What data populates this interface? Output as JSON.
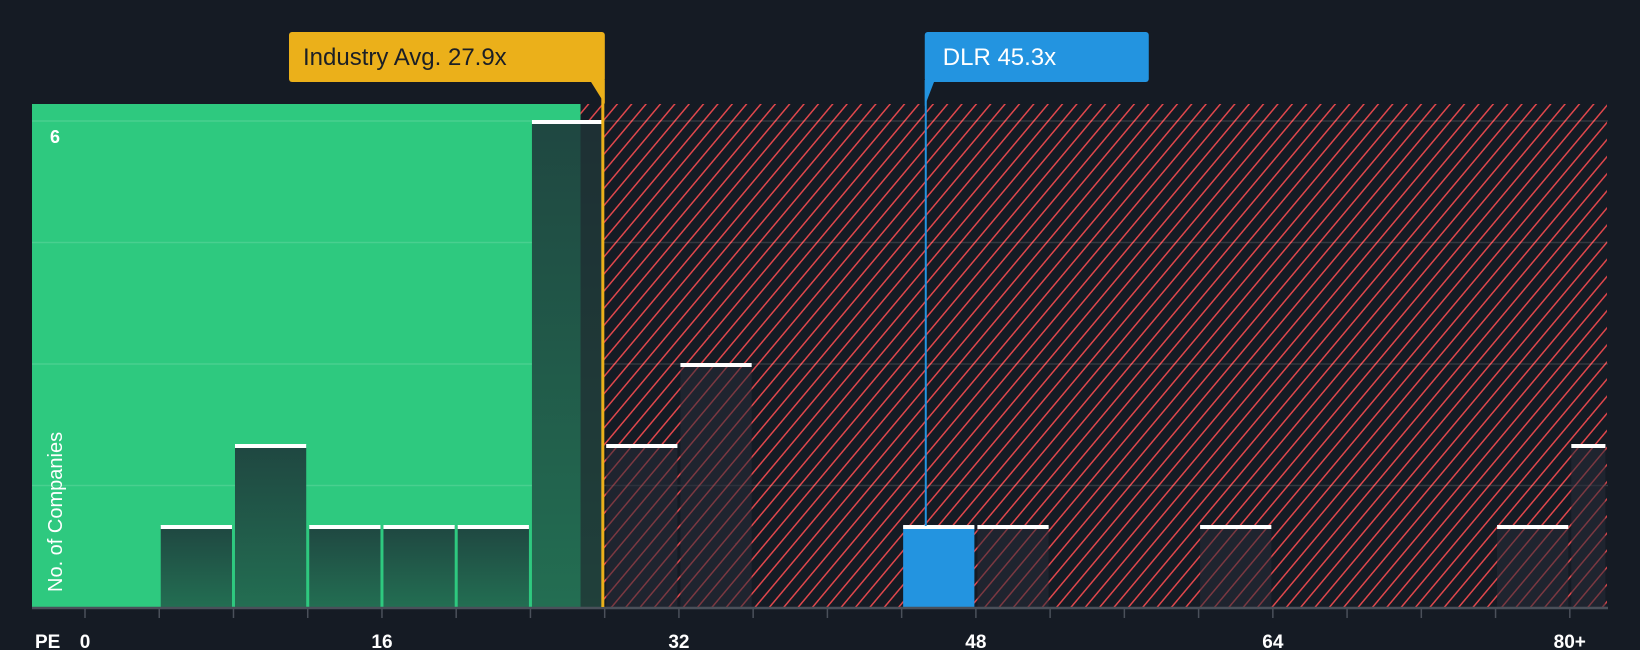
{
  "chart_data": {
    "type": "bar",
    "title": "",
    "xlabel": "PE",
    "ylabel": "No. of Companies",
    "x_unit": "PE ratio (x)",
    "bin_width": 4,
    "xlim": [
      0,
      82
    ],
    "ylim": [
      0,
      6
    ],
    "y_ticks_labeled": [
      6
    ],
    "y_gridlines": [
      1.5,
      3,
      4.5,
      6
    ],
    "x_tick_labels": [
      {
        "value": 0,
        "label": "0"
      },
      {
        "value": 16,
        "label": "16"
      },
      {
        "value": 32,
        "label": "32"
      },
      {
        "value": 48,
        "label": "48"
      },
      {
        "value": 64,
        "label": "64"
      },
      {
        "value": 80,
        "label": "80+"
      }
    ],
    "x_minor_ticks": [
      0,
      4,
      8,
      12,
      16,
      20,
      24,
      28,
      32,
      36,
      40,
      44,
      48,
      52,
      56,
      60,
      64,
      68,
      72,
      76,
      80
    ],
    "bins": [
      {
        "from": 4,
        "to": 8,
        "count": 1
      },
      {
        "from": 8,
        "to": 12,
        "count": 2
      },
      {
        "from": 12,
        "to": 16,
        "count": 1
      },
      {
        "from": 16,
        "to": 20,
        "count": 1
      },
      {
        "from": 20,
        "to": 24,
        "count": 1
      },
      {
        "from": 24,
        "to": 28,
        "count": 6
      },
      {
        "from": 28,
        "to": 32,
        "count": 2
      },
      {
        "from": 32,
        "to": 36,
        "count": 3
      },
      {
        "from": 44,
        "to": 48,
        "count": 1,
        "highlight": true
      },
      {
        "from": 48,
        "to": 52,
        "count": 1
      },
      {
        "from": 60,
        "to": 64,
        "count": 1
      },
      {
        "from": 76,
        "to": 80,
        "count": 1
      },
      {
        "from": 80,
        "to": 82,
        "count": 2,
        "label": "80+"
      }
    ],
    "regions": [
      {
        "name": "below-average",
        "from": 0,
        "to": 26.7,
        "color": "#2ec97f"
      },
      {
        "name": "above-average",
        "from": 26.7,
        "to": 82,
        "pattern": "red-hatch",
        "color": "#e0474c"
      }
    ],
    "markers": [
      {
        "name": "industry-average",
        "label": "Industry Avg. 27.9x",
        "value": 27.9,
        "color": "#ebb01a",
        "text_color": "#1b1f26"
      },
      {
        "name": "company",
        "label": "DLR 45.3x",
        "value": 45.3,
        "color": "#2394e0",
        "text_color": "#ffffff"
      }
    ]
  },
  "colors": {
    "background": "#151b24",
    "green": "#2ec97f",
    "bar_dark": "#1f4a40",
    "hatch": "#e0474c",
    "axis": "#4a505a",
    "text": "#ffffff"
  }
}
